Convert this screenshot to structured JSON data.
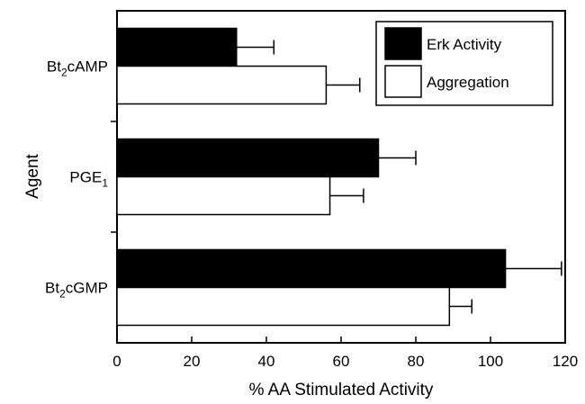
{
  "chart_data": {
    "type": "bar",
    "orientation": "horizontal",
    "categories": [
      {
        "base": "Bt",
        "sub": "2",
        "rest": "cAMP"
      },
      {
        "base": "PGE",
        "sub": "1",
        "rest": ""
      },
      {
        "base": "Bt",
        "sub": "2",
        "rest": "cGMP"
      }
    ],
    "series": [
      {
        "name": "Erk Activity",
        "color": "#000000",
        "values": [
          32,
          70,
          104
        ],
        "errors": [
          10,
          10,
          15
        ]
      },
      {
        "name": "Aggregation",
        "color": "#ffffff",
        "values": [
          56,
          57,
          89
        ],
        "errors": [
          9,
          9,
          6
        ]
      }
    ],
    "xlabel": "% AA Stimulated Activity",
    "ylabel": "Agent",
    "xlim": [
      0,
      120
    ],
    "xticks": [
      0,
      20,
      40,
      60,
      80,
      100,
      120
    ],
    "grid": false,
    "legend_position": "top-right"
  }
}
